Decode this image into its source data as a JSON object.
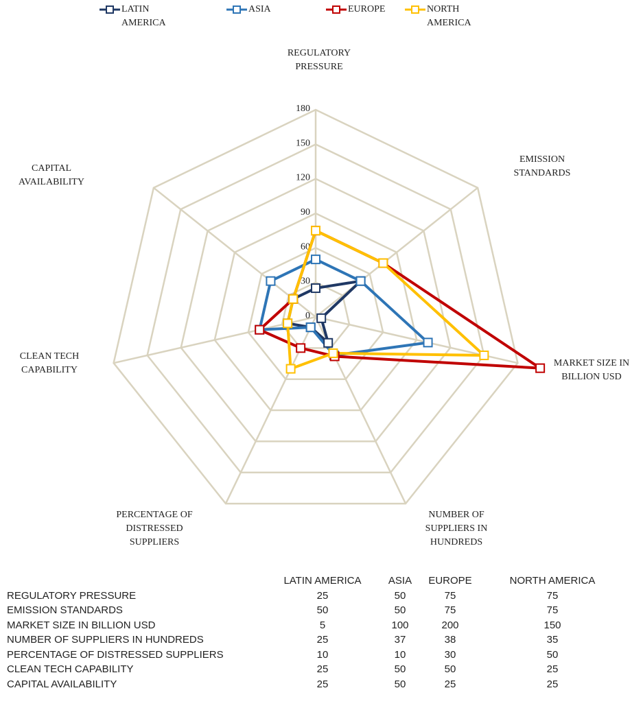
{
  "chart_data": {
    "type": "radar",
    "categories": [
      "REGULATORY PRESSURE",
      "EMISSION STANDARDS",
      "MARKET SIZE IN BILLION USD",
      "NUMBER OF SUPPLIERS IN HUNDREDS",
      "PERCENTAGE OF DISTRESSED SUPPLIERS",
      "CLEAN TECH CAPABILITY",
      "CAPITAL AVAILABILITY"
    ],
    "series": [
      {
        "name": "LATIN AMERICA",
        "color": "#1f3864",
        "values": [
          25,
          50,
          5,
          25,
          10,
          25,
          25
        ]
      },
      {
        "name": "ASIA",
        "color": "#2e75b6",
        "values": [
          50,
          50,
          100,
          37,
          10,
          50,
          50
        ]
      },
      {
        "name": "EUROPE",
        "color": "#c00000",
        "values": [
          75,
          75,
          200,
          38,
          30,
          50,
          25
        ]
      },
      {
        "name": "NORTH AMERICA",
        "color": "#ffc000",
        "values": [
          75,
          75,
          150,
          35,
          50,
          25,
          25
        ]
      }
    ],
    "rlim": [
      0,
      180
    ],
    "rticks": [
      0,
      30,
      60,
      90,
      120,
      150,
      180
    ],
    "grid": true,
    "legend": "top"
  }
}
